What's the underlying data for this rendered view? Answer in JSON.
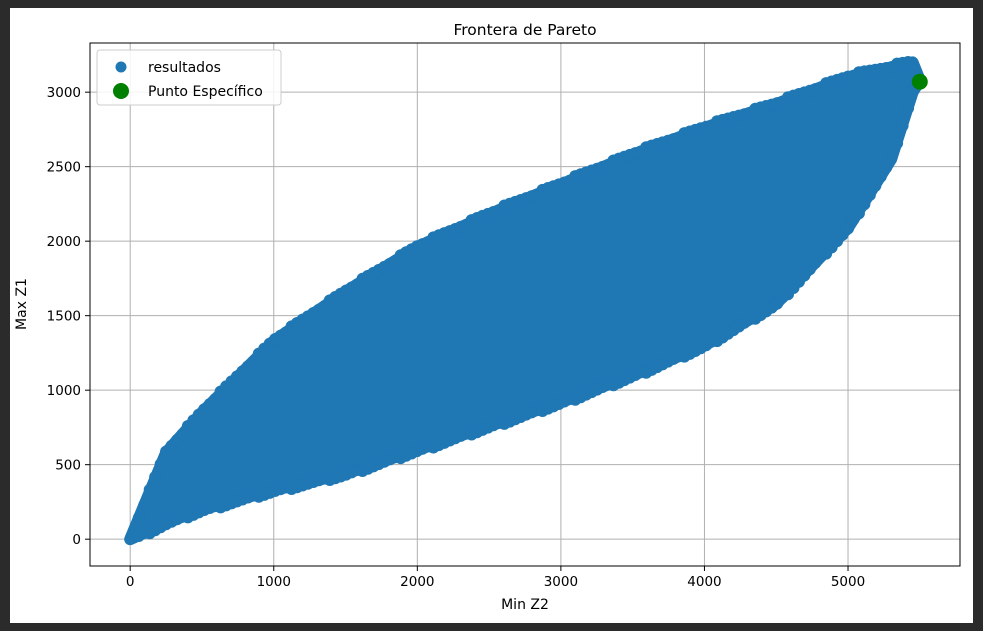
{
  "chart_data": {
    "type": "scatter",
    "title": "Frontera de Pareto",
    "xlabel": "Min Z2",
    "ylabel": "Max Z1",
    "xlim": [
      -280,
      5780
    ],
    "ylim": [
      -180,
      3330
    ],
    "xticks": [
      0,
      1000,
      2000,
      3000,
      4000,
      5000
    ],
    "yticks": [
      0,
      500,
      1000,
      1500,
      2000,
      2500,
      3000
    ],
    "grid": true,
    "legend_position": "upper-left",
    "series": [
      {
        "name": "resultados",
        "color": "#1f77b4",
        "marker": "circle",
        "description_region": {
          "upper_boundary": [
            [
              0,
              0
            ],
            [
              250,
              580
            ],
            [
              500,
              850
            ],
            [
              1000,
              1330
            ],
            [
              1500,
              1660
            ],
            [
              2000,
              1960
            ],
            [
              2500,
              2180
            ],
            [
              3000,
              2380
            ],
            [
              3500,
              2580
            ],
            [
              4000,
              2760
            ],
            [
              4500,
              2920
            ],
            [
              5000,
              3100
            ],
            [
              5450,
              3200
            ]
          ],
          "lower_boundary": [
            [
              0,
              0
            ],
            [
              250,
              110
            ],
            [
              500,
              200
            ],
            [
              1000,
              330
            ],
            [
              1500,
              440
            ],
            [
              2000,
              600
            ],
            [
              2500,
              760
            ],
            [
              3000,
              920
            ],
            [
              3500,
              1100
            ],
            [
              4000,
              1300
            ],
            [
              4500,
              1580
            ],
            [
              5000,
              2090
            ],
            [
              5300,
              2550
            ],
            [
              5450,
              3000
            ],
            [
              5500,
              3080
            ]
          ]
        }
      },
      {
        "name": "Punto Específico",
        "color": "#008000",
        "marker": "circle",
        "points": [
          [
            5500,
            3070
          ]
        ]
      }
    ]
  }
}
